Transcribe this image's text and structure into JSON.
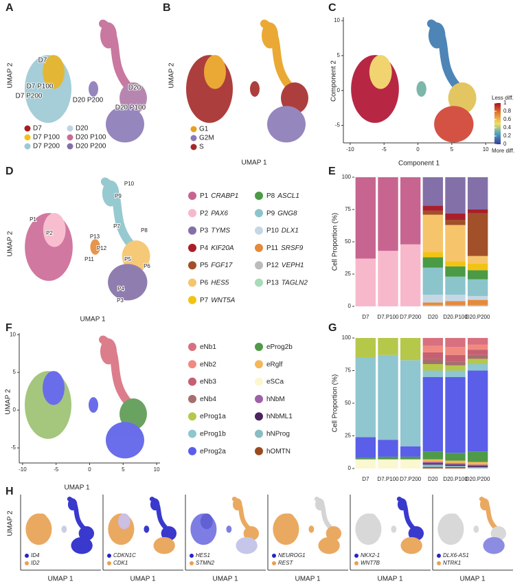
{
  "panels": {
    "A": {
      "letter": "A",
      "ylabel": "UMAP 2",
      "labels": [
        "D7",
        "D7 P100",
        "D7 P200",
        "D20",
        "D20 P200",
        "D20 P100"
      ],
      "legend": [
        {
          "name": "D7",
          "color": "#a51d22"
        },
        {
          "name": "D20",
          "color": "#bcd4e6"
        },
        {
          "name": "D7 P100",
          "color": "#f2c20f"
        },
        {
          "name": "D20 P100",
          "color": "#cc6a96"
        },
        {
          "name": "D7 P200",
          "color": "#9cc9d4"
        },
        {
          "name": "D20 P200",
          "color": "#8470a8"
        }
      ]
    },
    "B": {
      "letter": "B",
      "xlabel": "UMAP 1",
      "ylabel": "UMAP 2",
      "legend": [
        {
          "name": "G1",
          "color": "#e8a020"
        },
        {
          "name": "G2M",
          "color": "#8a7ab8"
        },
        {
          "name": "S",
          "color": "#a52a2a"
        }
      ]
    },
    "C": {
      "letter": "C",
      "xlabel": "Component 1",
      "ylabel": "Component 2",
      "xlim": [
        -11,
        11.5
      ],
      "xticks": [
        -10,
        -5,
        0,
        5,
        10
      ],
      "ylim": [
        -7.5,
        10.5
      ],
      "yticks": [
        -5,
        0,
        5,
        10
      ],
      "colorbar": {
        "top_label": "Less diff.",
        "bottom_label": "More diff.",
        "lim": [
          0,
          1
        ],
        "ticks": [
          0,
          0.2,
          0.4,
          0.6,
          0.8,
          1
        ],
        "colors": [
          "#3b3b9a",
          "#4aa0c0",
          "#f0e060",
          "#e08030",
          "#b01020"
        ]
      }
    },
    "D": {
      "letter": "D",
      "xlabel": "UMAP 1",
      "ylabel": "UMAP 2",
      "labels": [
        "P1",
        "P2",
        "P3",
        "P4",
        "P5",
        "P6",
        "P7",
        "P8",
        "P9",
        "P10",
        "P11",
        "P12",
        "P13"
      ]
    },
    "E": {
      "letter": "E"
    },
    "F": {
      "letter": "F",
      "xlabel": "UMAP 1",
      "ylabel": "UMAP 2",
      "xlim": [
        -10.5,
        10.5
      ],
      "xticks": [
        -10,
        -5,
        0,
        5,
        10
      ],
      "ylim": [
        -7,
        10.2
      ],
      "yticks": [
        -5,
        0,
        5,
        10
      ]
    },
    "G": {
      "letter": "G"
    },
    "H": {
      "letter": "H",
      "xlabel": "UMAP 1",
      "ylabel": "UMAP 2",
      "subpanels": [
        {
          "genes": [
            {
              "name": "ID4",
              "color": "#2424c8"
            },
            {
              "name": "ID2",
              "color": "#e8a050"
            }
          ]
        },
        {
          "genes": [
            {
              "name": "CDKN1C",
              "color": "#2424c8"
            },
            {
              "name": "CDK1",
              "color": "#e8a050"
            }
          ]
        },
        {
          "genes": [
            {
              "name": "HES1",
              "color": "#2424c8"
            },
            {
              "name": "STMN2",
              "color": "#e8a050"
            }
          ]
        },
        {
          "genes": [
            {
              "name": "NEUROG1",
              "color": "#2424c8"
            },
            {
              "name": "REST",
              "color": "#e8a050"
            }
          ]
        },
        {
          "genes": [
            {
              "name": "NKX2-1",
              "color": "#2424c8"
            },
            {
              "name": "WNT7B",
              "color": "#e8a050"
            }
          ]
        },
        {
          "genes": [
            {
              "name": "DLX6-AS1",
              "color": "#2424c8"
            },
            {
              "name": "NTRK1",
              "color": "#e8a050"
            }
          ]
        }
      ]
    }
  },
  "chart_data": [
    {
      "type": "bar",
      "stacked": true,
      "ylabel": "Cell Proportion (%)",
      "categories": [
        "D7",
        "D7.P100",
        "D7.P200",
        "D20",
        "D20.P100",
        "D20.P200"
      ],
      "ylim": [
        0,
        100
      ],
      "yticks": [
        0,
        25,
        50,
        75,
        100
      ],
      "series": [
        {
          "name": "P1",
          "gene": "CRABP1",
          "color": "#c76590",
          "values": [
            63,
            57,
            52,
            0,
            0,
            0
          ]
        },
        {
          "name": "P2",
          "gene": "PAX6",
          "color": "#f8b8cb",
          "values": [
            37,
            43,
            48,
            0,
            0,
            0
          ]
        },
        {
          "name": "P3",
          "gene": "TYMS",
          "color": "#8470a8",
          "values": [
            0,
            0,
            0,
            22,
            28,
            25
          ]
        },
        {
          "name": "P4",
          "gene": "KIF20A",
          "color": "#a81f2a",
          "values": [
            0,
            0,
            0,
            4,
            5,
            3
          ]
        },
        {
          "name": "P5",
          "gene": "FGF17",
          "color": "#a1502a",
          "values": [
            0,
            0,
            0,
            3,
            4,
            33
          ]
        },
        {
          "name": "P6",
          "gene": "HES5",
          "color": "#f6c46a",
          "values": [
            0,
            0,
            0,
            29,
            28,
            6
          ]
        },
        {
          "name": "P7",
          "gene": "WNT5A",
          "color": "#f2c313",
          "values": [
            0,
            0,
            0,
            4,
            4,
            5
          ]
        },
        {
          "name": "P8",
          "gene": "ASCL1",
          "color": "#4b9a45",
          "values": [
            0,
            0,
            0,
            8,
            8,
            7
          ]
        },
        {
          "name": "P9",
          "gene": "GNG8",
          "color": "#8cc4cc",
          "values": [
            0,
            0,
            0,
            21,
            14,
            13
          ]
        },
        {
          "name": "P10",
          "gene": "DLX1",
          "color": "#c5d7e5",
          "values": [
            0,
            0,
            0,
            6,
            5,
            3
          ]
        },
        {
          "name": "P11",
          "gene": "SRSF9",
          "color": "#e58a3a",
          "values": [
            0,
            0,
            0,
            2,
            3,
            4
          ]
        },
        {
          "name": "P12",
          "gene": "VEPH1",
          "color": "#bbbbbb",
          "values": [
            0,
            0,
            0,
            1,
            1,
            1
          ]
        },
        {
          "name": "P13",
          "gene": "TAGLN2",
          "color": "#a8dbb8",
          "values": [
            0,
            0,
            0,
            0,
            0,
            0
          ]
        }
      ]
    },
    {
      "type": "bar",
      "stacked": true,
      "ylabel": "Cell Proportion (%)",
      "categories": [
        "D7",
        "D7.P100",
        "D7.P200",
        "D20",
        "D20.P100",
        "D20.P200"
      ],
      "ylim": [
        0,
        100
      ],
      "yticks": [
        0,
        25,
        50,
        75,
        100
      ],
      "series": [
        {
          "name": "eNb1",
          "color": "#d9707f",
          "values": [
            0,
            0,
            0,
            6,
            7,
            5
          ]
        },
        {
          "name": "eNb2",
          "color": "#f08a80",
          "values": [
            0,
            0,
            0,
            5,
            6,
            4
          ]
        },
        {
          "name": "eNb3",
          "color": "#c66070",
          "values": [
            0,
            0,
            0,
            5,
            5,
            4
          ]
        },
        {
          "name": "eNb4",
          "color": "#a66f6f",
          "values": [
            0,
            0,
            0,
            4,
            3,
            3
          ]
        },
        {
          "name": "eProg1a",
          "color": "#b5c84a",
          "values": [
            15,
            13,
            17,
            5,
            4,
            4
          ]
        },
        {
          "name": "eProg1b",
          "color": "#8fc6cf",
          "values": [
            61,
            65,
            66,
            5,
            5,
            5
          ]
        },
        {
          "name": "eProg2a",
          "color": "#5a5ee8",
          "values": [
            16,
            13,
            8,
            57,
            58,
            62
          ]
        },
        {
          "name": "eProg2b",
          "color": "#4f9a48",
          "values": [
            1,
            2,
            2,
            6,
            6,
            8
          ]
        },
        {
          "name": "eRglf",
          "color": "#f4b75a",
          "values": [
            0,
            0,
            0,
            2,
            2,
            2
          ]
        },
        {
          "name": "eSCa",
          "color": "#fbf7cf",
          "values": [
            7,
            7,
            7,
            0,
            0,
            0
          ]
        },
        {
          "name": "hNbM",
          "color": "#9e60a8",
          "values": [
            0,
            0,
            0,
            1,
            1,
            1
          ]
        },
        {
          "name": "hNbML1",
          "color": "#4b2460",
          "values": [
            0,
            0,
            0,
            1,
            1,
            1
          ]
        },
        {
          "name": "hNProg",
          "color": "#8bbcc4",
          "values": [
            0,
            0,
            0,
            2,
            1,
            1
          ]
        },
        {
          "name": "hOMTN",
          "color": "#9a4a20",
          "values": [
            0,
            0,
            0,
            1,
            1,
            0
          ]
        }
      ]
    }
  ]
}
